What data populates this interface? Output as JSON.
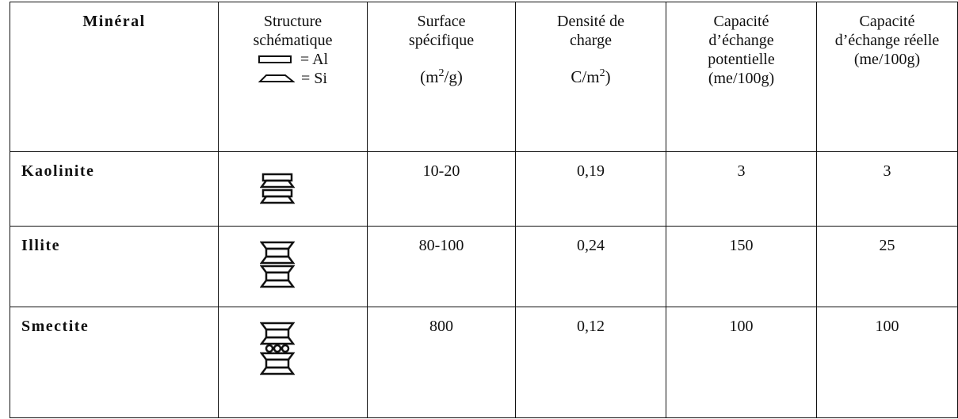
{
  "table": {
    "header": {
      "mineral": "Minéral",
      "structure": {
        "lines": [
          "Structure",
          "schématique"
        ],
        "legend": [
          "= Al",
          "= Si"
        ]
      },
      "surface": {
        "lines": [
          "Surface",
          "spécifique"
        ],
        "unit": [
          "(m",
          "2",
          "/g)"
        ]
      },
      "density": {
        "lines": [
          "Densité de",
          "charge"
        ],
        "unit": [
          "C/m",
          "2",
          ")"
        ]
      },
      "potential": [
        "Capacité",
        "d’échange",
        "potentielle",
        "(me/100g)"
      ],
      "real": [
        "Capacité",
        "d’échange réelle",
        "(me/100g)"
      ]
    },
    "rows": [
      [
        "Kaolinite",
        "10-20",
        "0,19",
        "3",
        "3"
      ],
      [
        "Illite",
        "80-100",
        "0,24",
        "150",
        "25"
      ],
      [
        "Smectite",
        "800",
        "0,12",
        "100",
        "100"
      ]
    ]
  }
}
